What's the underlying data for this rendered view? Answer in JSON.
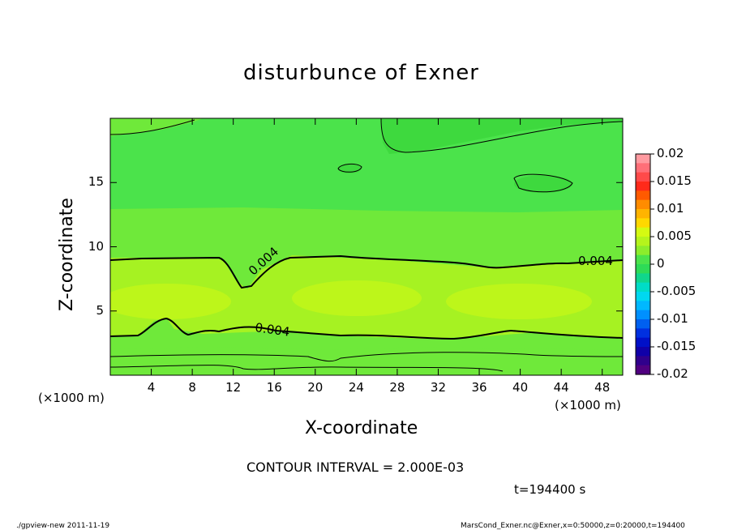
{
  "title": "disturbunce of Exner",
  "contour_interval": "CONTOUR INTERVAL = 2.000E-03",
  "time_label": "t=194400 s",
  "footer_left": "./gpview-new   2011-11-19",
  "footer_right": "MarsCond_Exner.nc@Exner,x=0:50000,z=0:20000,t=194400",
  "chart_data": {
    "type": "heatmap",
    "title": "disturbunce of Exner",
    "xlabel": "X-coordinate",
    "ylabel": "Z-coordinate",
    "x_unit": "(×1000 m)",
    "y_unit": "(×1000 m)",
    "xlim": [
      0,
      50
    ],
    "ylim": [
      0,
      20
    ],
    "x_ticks": [
      4,
      8,
      12,
      16,
      20,
      24,
      28,
      32,
      36,
      40,
      44,
      48
    ],
    "y_ticks": [
      5,
      10,
      15
    ],
    "contour_interval": 0.002,
    "contour_labels": [
      "0.004",
      "0.004",
      "0.004"
    ],
    "colorbar": {
      "ticks": [
        "0.02",
        "0.015",
        "0.01",
        "0.005",
        "0",
        "-0.005",
        "-0.01",
        "-0.015",
        "-0.02"
      ],
      "range": [
        -0.02,
        0.02
      ]
    },
    "colors": {
      "level_0_to_0002": "#4be34b",
      "level_0002_to_0004": "#8ced2c",
      "level_0004_to_0006": "#b5f41c",
      "level_0006_to_0008": "#d5fa12"
    }
  }
}
